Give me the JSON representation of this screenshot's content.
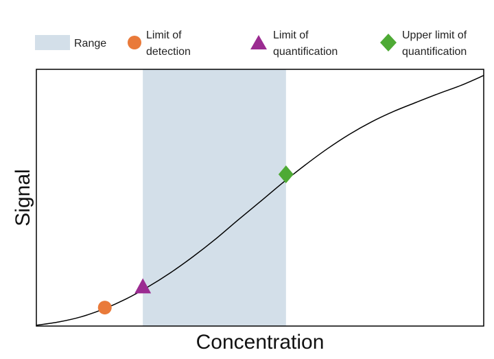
{
  "chart_data": {
    "type": "line",
    "title": "",
    "xlabel": "Concentration",
    "ylabel": "Signal",
    "xlim": [
      0,
      10
    ],
    "ylim": [
      0,
      10
    ],
    "ticks_shown": false,
    "grid": false,
    "curve": {
      "shape": "sigmoid",
      "color": "#000000",
      "x": [
        0,
        0.5,
        1,
        1.5,
        2,
        2.5,
        3,
        3.5,
        4,
        4.5,
        5,
        5.5,
        6,
        6.5,
        7,
        7.5,
        8,
        8.5,
        9,
        9.5,
        10
      ],
      "y": [
        0.03,
        0.16,
        0.36,
        0.66,
        1.05,
        1.53,
        2.08,
        2.7,
        3.38,
        4.12,
        4.84,
        5.57,
        6.26,
        6.9,
        7.47,
        7.96,
        8.37,
        8.72,
        9.06,
        9.38,
        9.76
      ]
    },
    "range": {
      "x_start": 2.38,
      "x_end": 5.58,
      "color": "#d3dfe9"
    },
    "markers": [
      {
        "name": "Limit of detection",
        "shape": "circle",
        "color": "#e97a3a",
        "x": 1.53,
        "y": 0.72
      },
      {
        "name": "Limit of quantification",
        "shape": "triangle",
        "color": "#9b2b91",
        "x": 2.38,
        "y": 1.54
      },
      {
        "name": "Upper limit of quantification",
        "shape": "diamond",
        "color": "#4eaa35",
        "x": 5.58,
        "y": 5.91
      }
    ],
    "legend": {
      "position": "top",
      "items": [
        {
          "shape": "rect",
          "color": "#d3dfe9",
          "lines": [
            "Range"
          ]
        },
        {
          "shape": "circle",
          "color": "#e97a3a",
          "lines": [
            "Limit of",
            "detection"
          ]
        },
        {
          "shape": "triangle",
          "color": "#9b2b91",
          "lines": [
            "Limit of",
            "quantification"
          ]
        },
        {
          "shape": "diamond",
          "color": "#4eaa35",
          "lines": [
            "Upper limit of",
            "quantification"
          ]
        }
      ]
    }
  }
}
